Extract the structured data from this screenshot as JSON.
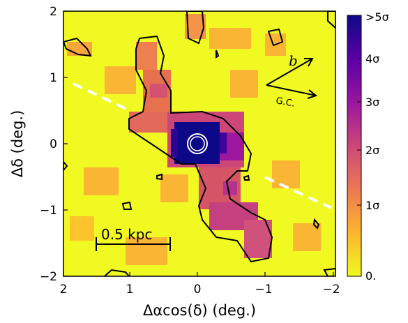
{
  "chart_data": {
    "type": "heatmap",
    "title": "",
    "xlabel": "Δαcos(δ) (deg.)",
    "ylabel": "Δδ (deg.)",
    "xlim": [
      2,
      -2
    ],
    "ylim": [
      -2,
      2
    ],
    "x_ticks": [
      "2",
      "1",
      "0",
      "−1",
      "−2"
    ],
    "y_ticks": [
      "2",
      "1",
      "0",
      "−1",
      "−2"
    ],
    "colorbar": {
      "ticks": [
        ">5σ",
        "4σ",
        "3σ",
        "2σ",
        "1σ",
        "0."
      ],
      "colors": [
        "#f0f921",
        "#fdb42f",
        "#ed7953",
        "#cc4778",
        "#9c179e",
        "#5c01a6",
        "#0d0887"
      ]
    },
    "annotations": {
      "scale_bar_label": "0.5 kpc",
      "arrow_b_label": "b",
      "arrow_gc_label": "G.C."
    },
    "colors": {
      "background": "#f0f921",
      "contour": "#000000",
      "dashed_line": "#ffffff"
    }
  }
}
